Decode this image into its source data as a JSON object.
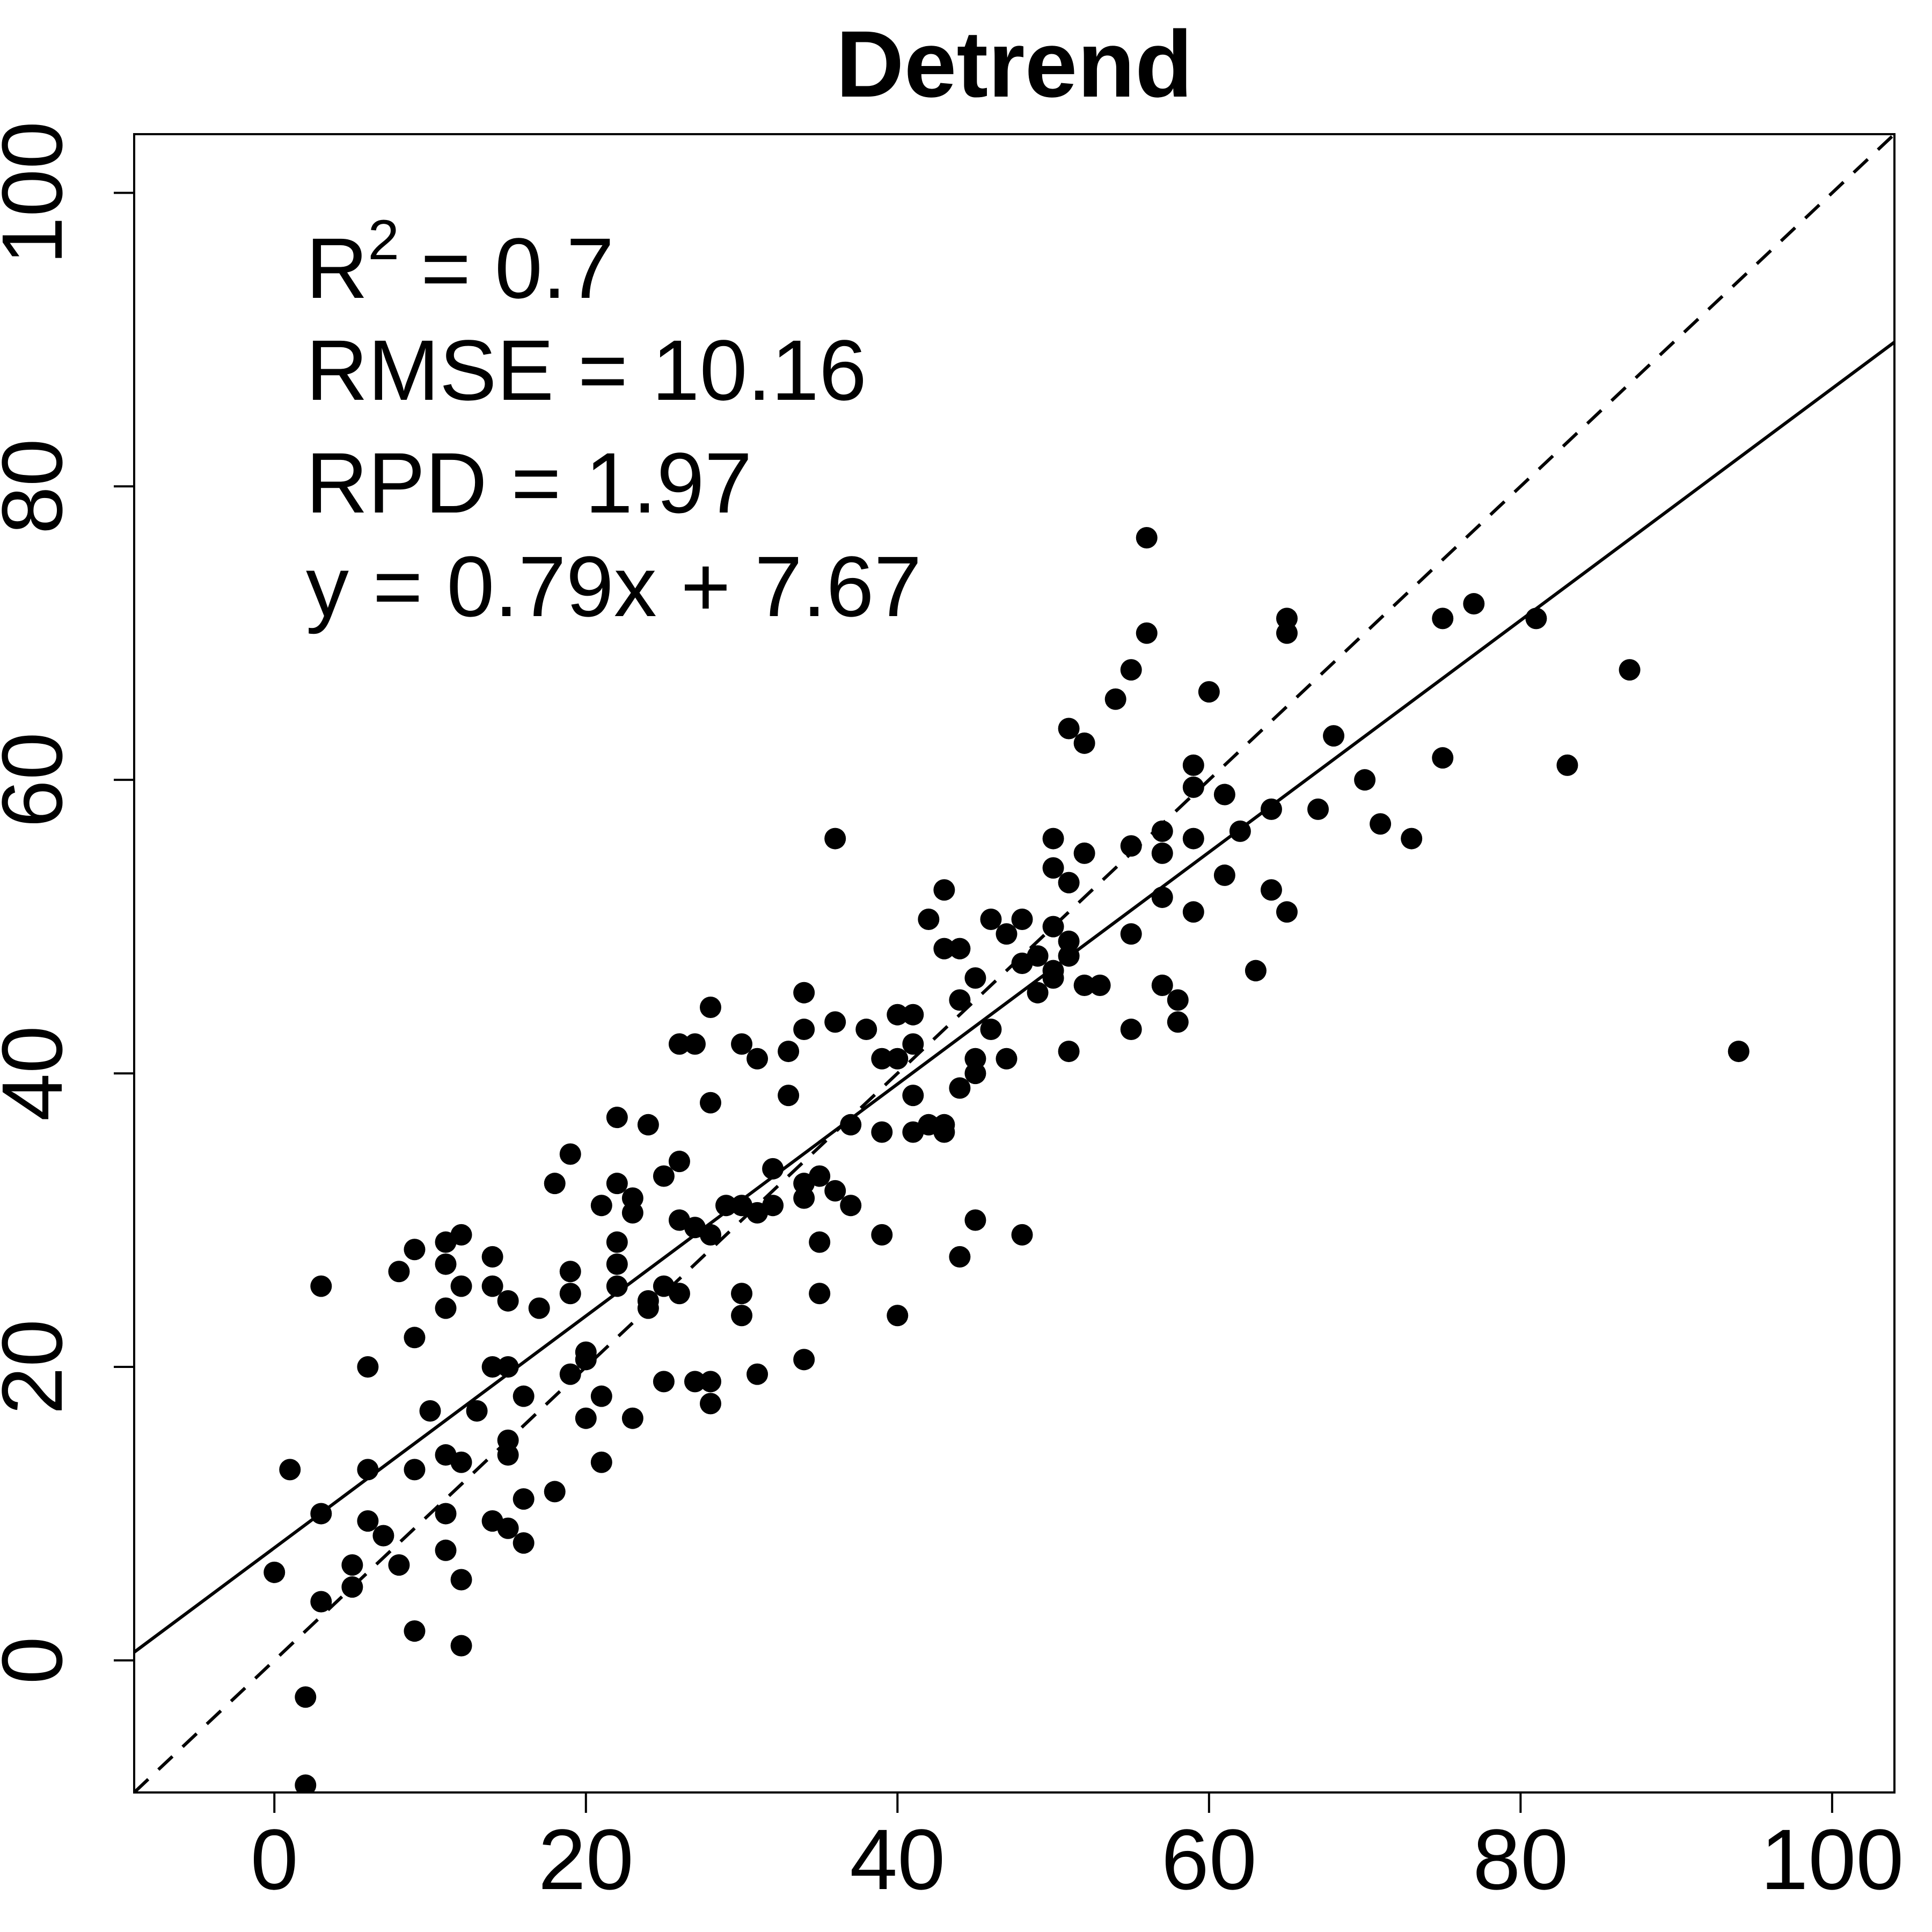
{
  "chart_data": {
    "type": "scatter",
    "title": "Detrend",
    "xlabel": "",
    "ylabel": "",
    "xlim": [
      -9,
      104
    ],
    "ylim": [
      -9,
      104
    ],
    "x_ticks": [
      0,
      20,
      40,
      60,
      80,
      100
    ],
    "y_ticks": [
      0,
      20,
      40,
      60,
      80,
      100
    ],
    "x_tick_labels": [
      "0",
      "20",
      "40",
      "60",
      "80",
      "100"
    ],
    "y_tick_labels": [
      "0",
      "20",
      "40",
      "60",
      "80",
      "100"
    ],
    "grid": false,
    "legend": "none",
    "stats": {
      "r2_label": "R",
      "r2_sup": "2",
      "r2_value": "= 0.7",
      "rmse": "RMSE = 10.16",
      "rpd": "RPD = 1.97",
      "equation": "y = 0.79x + 7.67"
    },
    "fit_line": {
      "slope": 0.79,
      "intercept": 7.67,
      "style": "solid"
    },
    "reference_line": {
      "slope": 1,
      "intercept": 0,
      "style": "dashed"
    },
    "point_color": "#000000",
    "points": [
      [
        0,
        6
      ],
      [
        1,
        13
      ],
      [
        2,
        -2.5
      ],
      [
        2,
        -8.5
      ],
      [
        3,
        25.5
      ],
      [
        3,
        10
      ],
      [
        3,
        4
      ],
      [
        5,
        6.5
      ],
      [
        5,
        5
      ],
      [
        6,
        20
      ],
      [
        6,
        13
      ],
      [
        6,
        9.5
      ],
      [
        7,
        8.5
      ],
      [
        8,
        26.5
      ],
      [
        8,
        6.5
      ],
      [
        9,
        28
      ],
      [
        9,
        22
      ],
      [
        9,
        13
      ],
      [
        9,
        2
      ],
      [
        10,
        17
      ],
      [
        11,
        28.5
      ],
      [
        11,
        27
      ],
      [
        11,
        24
      ],
      [
        11,
        14
      ],
      [
        11,
        10
      ],
      [
        11,
        7.5
      ],
      [
        12,
        29
      ],
      [
        12,
        25.5
      ],
      [
        12,
        13.5
      ],
      [
        12,
        5.5
      ],
      [
        12,
        1
      ],
      [
        13,
        17
      ],
      [
        14,
        27.5
      ],
      [
        14,
        25.5
      ],
      [
        14,
        20
      ],
      [
        14,
        9.5
      ],
      [
        15,
        24.5
      ],
      [
        15,
        20
      ],
      [
        15,
        15
      ],
      [
        15,
        14
      ],
      [
        15,
        9
      ],
      [
        16,
        18
      ],
      [
        16,
        11
      ],
      [
        16,
        8
      ],
      [
        17,
        24
      ],
      [
        18,
        32.5
      ],
      [
        18,
        11.5
      ],
      [
        19,
        34.5
      ],
      [
        19,
        26.5
      ],
      [
        19,
        25
      ],
      [
        19,
        19.5
      ],
      [
        20,
        21
      ],
      [
        20,
        20.5
      ],
      [
        20,
        16.5
      ],
      [
        21,
        31
      ],
      [
        21,
        18
      ],
      [
        21,
        13.5
      ],
      [
        22,
        37
      ],
      [
        22,
        32.5
      ],
      [
        22,
        28.5
      ],
      [
        22,
        27
      ],
      [
        22,
        25.5
      ],
      [
        23,
        31.5
      ],
      [
        23,
        30.5
      ],
      [
        23,
        16.5
      ],
      [
        24,
        36.5
      ],
      [
        24,
        24.5
      ],
      [
        24,
        24
      ],
      [
        25,
        33
      ],
      [
        25,
        25.5
      ],
      [
        25,
        19
      ],
      [
        26,
        42
      ],
      [
        26,
        34
      ],
      [
        26,
        30
      ],
      [
        26,
        25
      ],
      [
        27,
        42
      ],
      [
        27,
        29.5
      ],
      [
        27,
        19
      ],
      [
        28,
        44.5
      ],
      [
        28,
        38
      ],
      [
        28,
        29
      ],
      [
        28,
        19
      ],
      [
        28,
        17.5
      ],
      [
        29,
        31
      ],
      [
        30,
        42
      ],
      [
        30,
        31
      ],
      [
        30,
        25
      ],
      [
        30,
        23.5
      ],
      [
        31,
        41
      ],
      [
        31,
        30.5
      ],
      [
        31,
        19.5
      ],
      [
        32,
        33.5
      ],
      [
        32,
        31
      ],
      [
        33,
        41.5
      ],
      [
        33,
        38.5
      ],
      [
        34,
        45.5
      ],
      [
        34,
        43
      ],
      [
        34,
        32.5
      ],
      [
        34,
        31.5
      ],
      [
        34,
        20.5
      ],
      [
        35,
        33
      ],
      [
        35,
        28.5
      ],
      [
        35,
        25
      ],
      [
        36,
        56
      ],
      [
        36,
        43.5
      ],
      [
        36,
        32
      ],
      [
        37,
        36.5
      ],
      [
        37,
        31
      ],
      [
        38,
        43
      ],
      [
        39,
        41
      ],
      [
        39,
        36
      ],
      [
        39,
        29
      ],
      [
        40,
        44
      ],
      [
        40,
        41
      ],
      [
        40,
        23.5
      ],
      [
        41,
        44
      ],
      [
        41,
        42
      ],
      [
        41,
        38.5
      ],
      [
        41,
        36
      ],
      [
        42,
        50.5
      ],
      [
        42,
        36.5
      ],
      [
        43,
        52.5
      ],
      [
        43,
        48.5
      ],
      [
        43,
        36.5
      ],
      [
        43,
        36
      ],
      [
        44,
        48.5
      ],
      [
        44,
        45
      ],
      [
        44,
        39
      ],
      [
        44,
        27.5
      ],
      [
        45,
        46.5
      ],
      [
        45,
        41
      ],
      [
        45,
        40
      ],
      [
        45,
        30
      ],
      [
        46,
        50.5
      ],
      [
        46,
        43
      ],
      [
        47,
        49.5
      ],
      [
        47,
        41
      ],
      [
        48,
        50.5
      ],
      [
        48,
        47.5
      ],
      [
        48,
        29
      ],
      [
        49,
        48
      ],
      [
        49,
        45.5
      ],
      [
        50,
        56
      ],
      [
        50,
        54
      ],
      [
        50,
        50
      ],
      [
        50,
        47
      ],
      [
        50,
        46.5
      ],
      [
        51,
        63.5
      ],
      [
        51,
        53
      ],
      [
        51,
        49
      ],
      [
        51,
        48
      ],
      [
        51,
        41.5
      ],
      [
        52,
        62.5
      ],
      [
        52,
        55
      ],
      [
        52,
        46
      ],
      [
        53,
        46
      ],
      [
        54,
        65.5
      ],
      [
        55,
        67.5
      ],
      [
        55,
        55.5
      ],
      [
        55,
        49.5
      ],
      [
        55,
        43
      ],
      [
        56,
        76.5
      ],
      [
        56,
        70
      ],
      [
        57,
        56.5
      ],
      [
        57,
        55
      ],
      [
        57,
        52
      ],
      [
        57,
        46
      ],
      [
        58,
        45
      ],
      [
        58,
        43.5
      ],
      [
        59,
        61
      ],
      [
        59,
        59.5
      ],
      [
        59,
        56
      ],
      [
        59,
        51
      ],
      [
        60,
        66
      ],
      [
        61,
        59
      ],
      [
        61,
        53.5
      ],
      [
        62,
        56.5
      ],
      [
        63,
        47
      ],
      [
        64,
        58
      ],
      [
        64,
        52.5
      ],
      [
        65,
        71
      ],
      [
        65,
        70
      ],
      [
        65,
        51
      ],
      [
        67,
        58
      ],
      [
        68,
        63
      ],
      [
        70,
        60
      ],
      [
        71,
        57
      ],
      [
        73,
        56
      ],
      [
        75,
        71
      ],
      [
        75,
        61.5
      ],
      [
        77,
        72
      ],
      [
        81,
        71
      ],
      [
        83,
        61
      ],
      [
        87,
        67.5
      ],
      [
        94,
        41.5
      ]
    ]
  }
}
